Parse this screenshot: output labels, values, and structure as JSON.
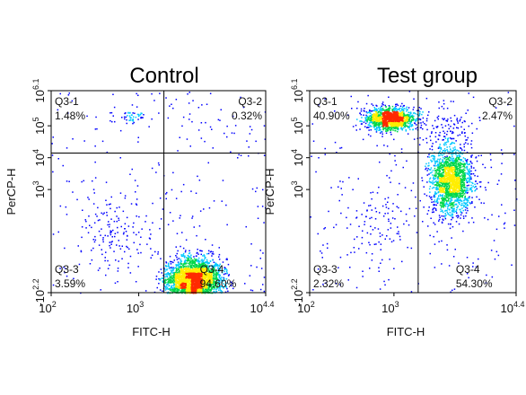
{
  "chart_data": [
    {
      "type": "scatter",
      "title": "Control",
      "xlabel": "FITC-H",
      "ylabel": "PerCP-H",
      "x_scale": "log",
      "y_scale": "log",
      "xlim": [
        100,
        25119
      ],
      "ylim": [
        -158,
        1258925
      ],
      "x_gate": 1900,
      "y_gate": 14000,
      "x_ticks": [
        {
          "base": "10",
          "exp": "2",
          "pos": 100
        },
        {
          "base": "10",
          "exp": "3",
          "pos": 1000
        },
        {
          "base": "10",
          "exp": "4.4",
          "pos": 25119
        }
      ],
      "y_ticks": [
        {
          "base": "-10",
          "exp": "2.2",
          "pos": -158
        },
        {
          "base": "10",
          "exp": "3",
          "pos": 1000
        },
        {
          "base": "10",
          "exp": "4",
          "pos": 10000
        },
        {
          "base": "10",
          "exp": "5",
          "pos": 100000
        },
        {
          "base": "10",
          "exp": "6.1",
          "pos": 1258925
        }
      ],
      "quadrants": [
        {
          "name": "Q3-1",
          "value": "1.48%",
          "corner": "top-left"
        },
        {
          "name": "Q3-2",
          "value": "0.32%",
          "corner": "top-right"
        },
        {
          "name": "Q3-3",
          "value": "3.59%",
          "corner": "bottom-left"
        },
        {
          "name": "Q3-4",
          "value": "94.60%",
          "corner": "bottom-right"
        }
      ],
      "populations": [
        {
          "x_center": 4000,
          "y_center": -60,
          "x_spread": 0.22,
          "y_spread": 0.3,
          "share": 0.946,
          "quadrant": "Q3-4"
        },
        {
          "x_center": 900,
          "y_center": 200000,
          "x_spread": 0.15,
          "y_spread": 0.12,
          "share": 0.0148,
          "quadrant": "Q3-1"
        },
        {
          "x_center": 4200,
          "y_center": 150000,
          "x_spread": 0.2,
          "y_spread": 0.25,
          "share": 0.0032,
          "quadrant": "Q3-2"
        },
        {
          "x_center": 600,
          "y_center": 50,
          "x_spread": 0.3,
          "y_spread": 0.45,
          "share": 0.0359,
          "quadrant": "Q3-3"
        }
      ],
      "density_colors": [
        "#0000ff",
        "#00c8ff",
        "#00d84a",
        "#ffee00",
        "#ff2a00"
      ]
    },
    {
      "type": "scatter",
      "title": "Test group",
      "xlabel": "FITC-H",
      "ylabel": "PerCP-H",
      "x_scale": "log",
      "y_scale": "log",
      "xlim": [
        100,
        25119
      ],
      "ylim": [
        -158,
        1258925
      ],
      "x_gate": 1900,
      "y_gate": 14000,
      "x_ticks": [
        {
          "base": "10",
          "exp": "2",
          "pos": 100
        },
        {
          "base": "10",
          "exp": "3",
          "pos": 1000
        },
        {
          "base": "10",
          "exp": "4.4",
          "pos": 25119
        }
      ],
      "y_ticks": [
        {
          "base": "-10",
          "exp": "2.2",
          "pos": -158
        },
        {
          "base": "10",
          "exp": "3",
          "pos": 1000
        },
        {
          "base": "10",
          "exp": "4",
          "pos": 10000
        },
        {
          "base": "10",
          "exp": "5",
          "pos": 100000
        },
        {
          "base": "10",
          "exp": "6.1",
          "pos": 1258925
        }
      ],
      "quadrants": [
        {
          "name": "Q3-1",
          "value": "40.90%",
          "corner": "top-left"
        },
        {
          "name": "Q3-2",
          "value": "2.47%",
          "corner": "top-right"
        },
        {
          "name": "Q3-3",
          "value": "2.32%",
          "corner": "bottom-left"
        },
        {
          "name": "Q3-4",
          "value": "54.30%",
          "corner": "bottom-right"
        }
      ],
      "populations": [
        {
          "x_center": 900,
          "y_center": 170000,
          "x_spread": 0.2,
          "y_spread": 0.15,
          "share": 0.409,
          "quadrant": "Q3-1"
        },
        {
          "x_center": 4500,
          "y_center": 2000,
          "x_spread": 0.18,
          "y_spread": 0.45,
          "share": 0.543,
          "quadrant": "Q3-4"
        },
        {
          "x_center": 4000,
          "y_center": 120000,
          "x_spread": 0.2,
          "y_spread": 0.25,
          "share": 0.0247,
          "quadrant": "Q3-2"
        },
        {
          "x_center": 700,
          "y_center": 80,
          "x_spread": 0.3,
          "y_spread": 0.45,
          "share": 0.0232,
          "quadrant": "Q3-3"
        }
      ],
      "density_colors": [
        "#0000ff",
        "#00c8ff",
        "#00d84a",
        "#ffee00",
        "#ff2a00"
      ]
    }
  ]
}
